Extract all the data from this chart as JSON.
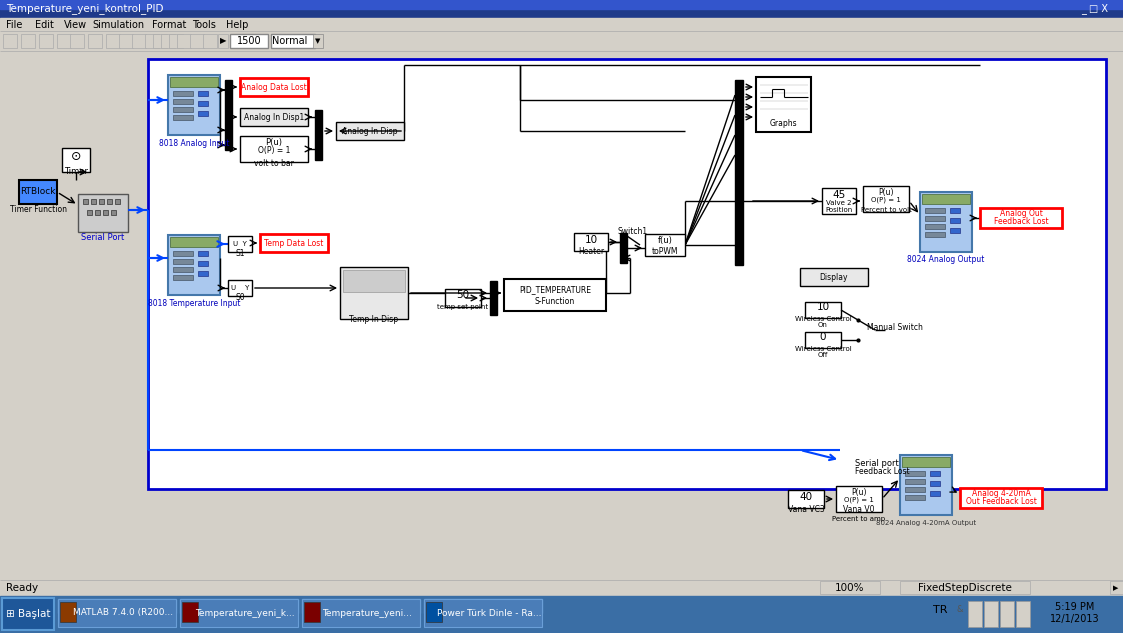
{
  "title_bar": "Temperature_yeni_kontrol_PID",
  "bg_color": "#d4d0c8",
  "canvas_bg": "#ffffff",
  "canvas_border": "#0000cc",
  "status_bar_text": "Ready",
  "status_right": "FixedStepDiscrete",
  "zoom_text": "100%",
  "time_text1": "5:19 PM",
  "time_text2": "12/1/2013",
  "titlebar_color": "#0a246a",
  "taskbar_color": "#245edb"
}
